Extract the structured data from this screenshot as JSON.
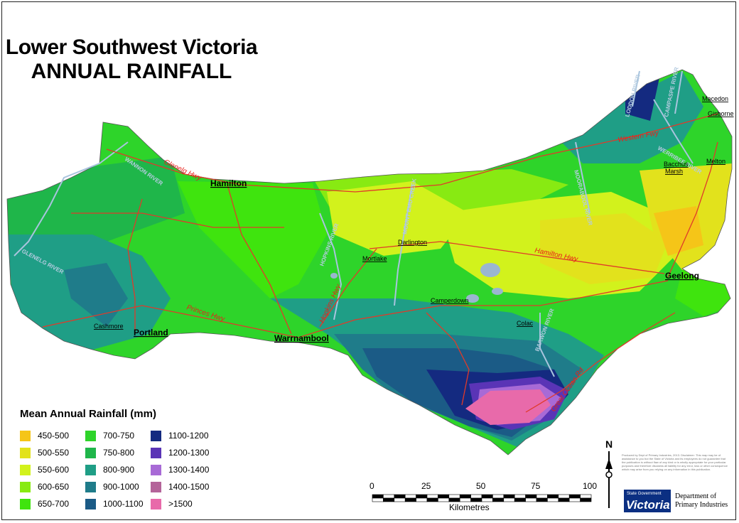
{
  "title": {
    "line1": "Lower Southwest Victoria",
    "line2": "ANNUAL RAINFALL"
  },
  "legend": {
    "title": "Mean Annual Rainfall (mm)",
    "items": [
      {
        "label": "450-500",
        "color": "#f5c518"
      },
      {
        "label": "500-550",
        "color": "#e2e21c"
      },
      {
        "label": "550-600",
        "color": "#d2f21c"
      },
      {
        "label": "600-650",
        "color": "#88ea12"
      },
      {
        "label": "650-700",
        "color": "#3fe40e"
      },
      {
        "label": "700-750",
        "color": "#2ed42a"
      },
      {
        "label": "750-800",
        "color": "#1fb64a"
      },
      {
        "label": "800-900",
        "color": "#1f9e86"
      },
      {
        "label": "900-1000",
        "color": "#1f7c8a"
      },
      {
        "label": "1000-1100",
        "color": "#1b5b86"
      },
      {
        "label": "1100-1200",
        "color": "#142a80"
      },
      {
        "label": "1200-1300",
        "color": "#5a34b6"
      },
      {
        "label": "1300-1400",
        "color": "#a86ad6"
      },
      {
        "label": "1400-1500",
        "color": "#b4649a"
      },
      {
        "label": ">1500",
        "color": "#e86aaa"
      }
    ]
  },
  "towns": [
    {
      "name": "Hamilton",
      "style": "bold"
    },
    {
      "name": "Portland",
      "style": "bold"
    },
    {
      "name": "Warrnambool",
      "style": "bold"
    },
    {
      "name": "Geelong",
      "style": "bold"
    },
    {
      "name": "Cashmore",
      "style": "regular"
    },
    {
      "name": "Mortlake",
      "style": "regular"
    },
    {
      "name": "Darlington",
      "style": "regular"
    },
    {
      "name": "Camperdown",
      "style": "regular"
    },
    {
      "name": "Colac",
      "style": "regular"
    },
    {
      "name": "Macedon",
      "style": "regular"
    },
    {
      "name": "Gisborne",
      "style": "regular"
    },
    {
      "name": "Melton",
      "style": "regular"
    },
    {
      "name": "Bacchus",
      "style": "regular"
    },
    {
      "name": "Marsh",
      "style": "regular"
    }
  ],
  "roads": [
    "Glenelg Hwy",
    "Western Fwy",
    "Hamilton Hwy",
    "Princes Hwy",
    "Hopkins Hwy",
    "Great Ocean Rd"
  ],
  "rivers": [
    "WANNON RIVER",
    "GLENELG RIVER",
    "HOPKINS RIVER",
    "MOUNT EMU CREEK",
    "MOORABOOL RIVER",
    "WERRIBEE RIVER",
    "LODDON RIVER",
    "CAMPASPE RIVER",
    "BARWON RIVER"
  ],
  "scale_bar": {
    "ticks": [
      "0",
      "25",
      "50",
      "75",
      "100"
    ],
    "unit": "Kilometres"
  },
  "north": "N",
  "credits": "Produced by Dept of Primary Industries, 2013. Disclaimer: This map may be of assistance to you but the State of Victoria and its employees do not guarantee that the publication is without flaw of any kind or is wholly appropriate for your particular purposes and therefore disclaims all liability for any error, loss or other consequence which may arise from you relying on any information in this publication.",
  "logo": {
    "small": "State Government",
    "big": "Victoria",
    "dept1": "Department of",
    "dept2": "Primary Industries"
  }
}
